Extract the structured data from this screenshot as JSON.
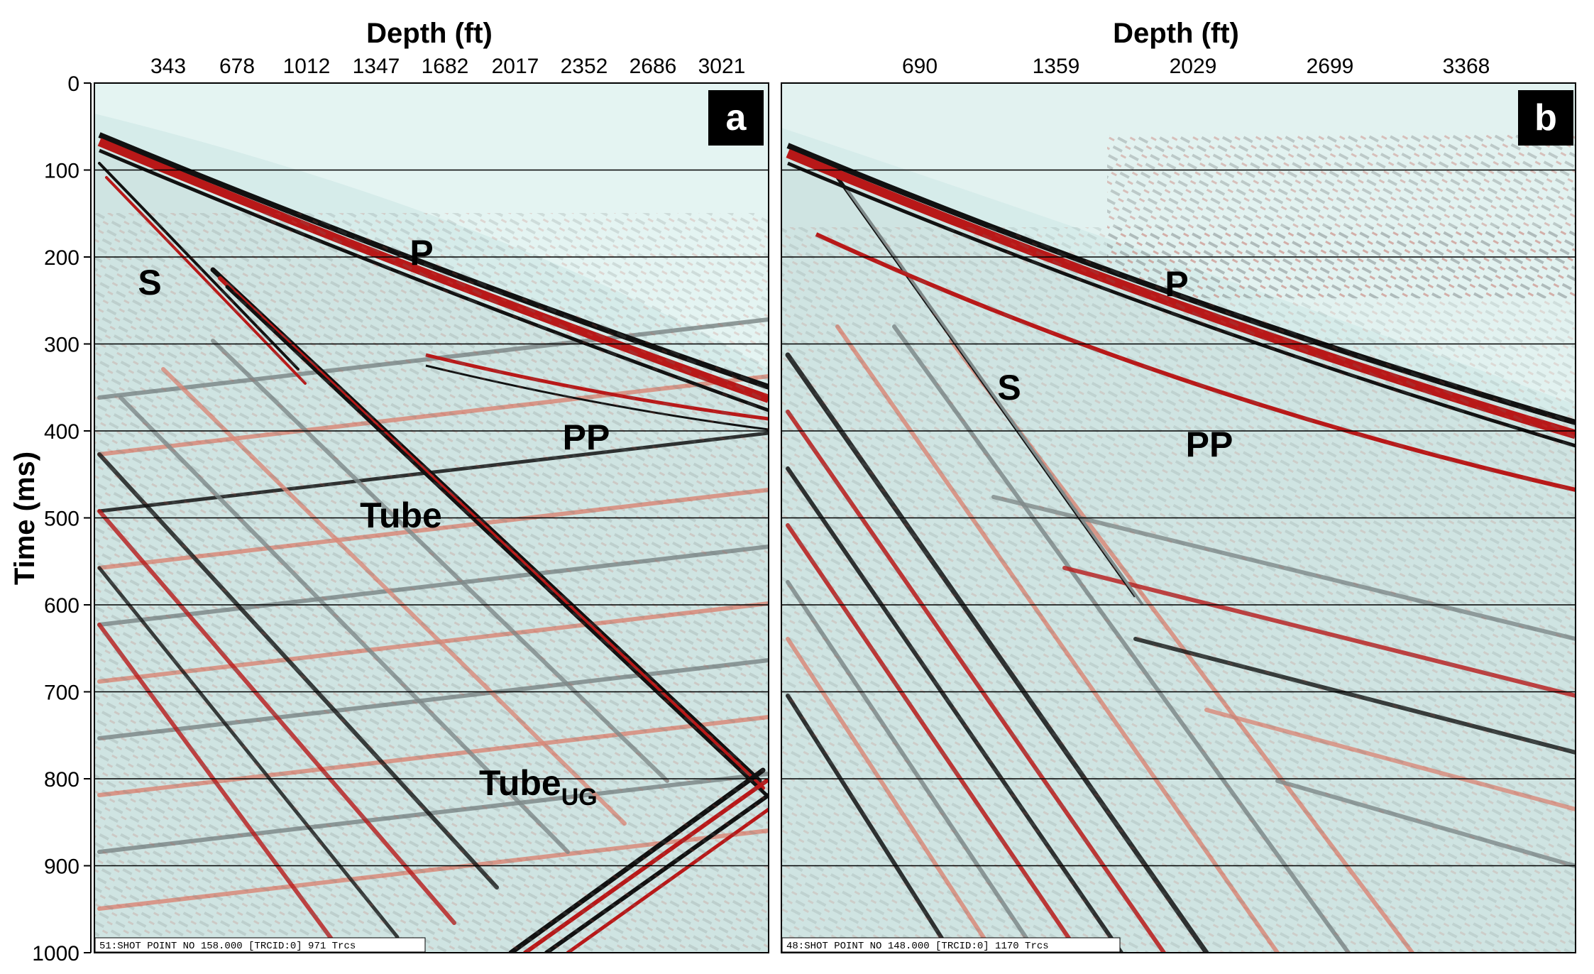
{
  "time_axis": {
    "title": "Time (ms)",
    "ticks": [
      "0",
      "100",
      "200",
      "300",
      "400",
      "500",
      "600",
      "700",
      "800",
      "900",
      "1000"
    ],
    "range": [
      0,
      1000
    ]
  },
  "panel_a": {
    "letter": "a",
    "depth_title": "Depth (ft)",
    "depth_ticks": [
      "343",
      "678",
      "1012",
      "1347",
      "1682",
      "2017",
      "2352",
      "2686",
      "3021"
    ],
    "labels": {
      "p": "P",
      "s": "S",
      "pp": "PP",
      "tube": "Tube",
      "tube_ug_main": "Tube",
      "tube_ug_sub": "UG"
    },
    "footer": "51:SHOT POINT NO 158.000 [TRCID:0] 971 Trcs"
  },
  "panel_b": {
    "letter": "b",
    "depth_title": "Depth (ft)",
    "depth_ticks": [
      "690",
      "1359",
      "2029",
      "2699",
      "3368"
    ],
    "labels": {
      "p": "P",
      "s": "S",
      "pp": "PP"
    },
    "footer": "48:SHOT POINT NO 148.000 [TRCID:0] 1170 Trcs"
  },
  "colors": {
    "background": "#d6ecea",
    "wavelet_red": "#b81818",
    "wavelet_black": "#111111",
    "wavelet_light_red": "#d98a7a",
    "wavelet_gray": "#7f8a8a"
  }
}
